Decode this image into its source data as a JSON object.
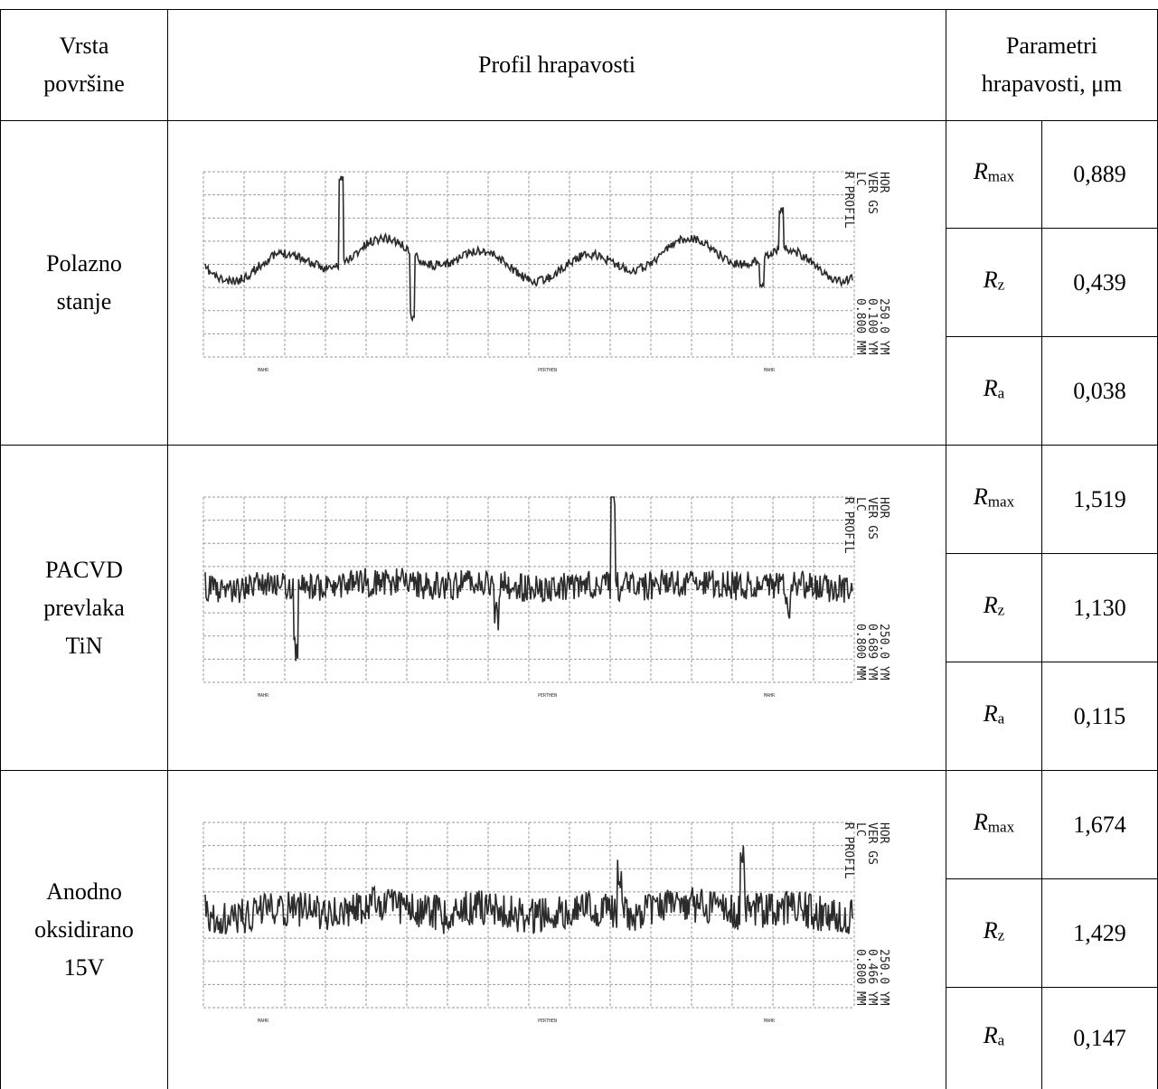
{
  "header": {
    "col1": [
      "Vrsta",
      "površine"
    ],
    "col2": "Profil hrapavosti",
    "col3": [
      "Parametri",
      "hrapavosti, μm"
    ]
  },
  "rows": [
    {
      "surface": [
        "Polazno",
        "stanje"
      ],
      "profile": {
        "title": "R PROFIL",
        "lc": "LC",
        "ver": "VER",
        "hor": "HOR",
        "gs": "GS",
        "lc_val": "0.800 MM",
        "ver_val": "0.100 YM",
        "hor_val": "250.0 YM",
        "footer": [
          "MAHR",
          "PERTHEN",
          "MAHR"
        ]
      },
      "params": [
        {
          "sym": "R",
          "sub": "max",
          "value": "0,889"
        },
        {
          "sym": "R",
          "sub": "z",
          "value": "0,439"
        },
        {
          "sym": "R",
          "sub": "a",
          "value": "0,038"
        }
      ]
    },
    {
      "surface": [
        "PACVD",
        "prevlaka",
        "TiN"
      ],
      "profile": {
        "title": "R PROFIL",
        "lc": "LC",
        "ver": "VER",
        "hor": "HOR",
        "gs": "GS",
        "lc_val": "0.800 MM",
        "ver_val": "0.689 YM",
        "hor_val": "250.0 YM",
        "footer": [
          "MAHR",
          "PERTHEN",
          "MAHR"
        ]
      },
      "params": [
        {
          "sym": "R",
          "sub": "max",
          "value": "1,519"
        },
        {
          "sym": "R",
          "sub": "z",
          "value": "1,130"
        },
        {
          "sym": "R",
          "sub": "a",
          "value": "0,115"
        }
      ]
    },
    {
      "surface": [
        "Anodno",
        "oksidirano",
        "15V"
      ],
      "profile": {
        "title": "R PROFIL",
        "lc": "LC",
        "ver": "VER",
        "hor": "HOR",
        "gs": "GS",
        "lc_val": "0.800 MM",
        "ver_val": "0.466 YM",
        "hor_val": "250.0 YM",
        "footer": [
          "MAHR",
          "PERTHEN",
          "MAHR"
        ]
      },
      "params": [
        {
          "sym": "R",
          "sub": "max",
          "value": "1,674"
        },
        {
          "sym": "R",
          "sub": "z",
          "value": "1,429"
        },
        {
          "sym": "R",
          "sub": "a",
          "value": "0,147"
        }
      ]
    }
  ]
}
